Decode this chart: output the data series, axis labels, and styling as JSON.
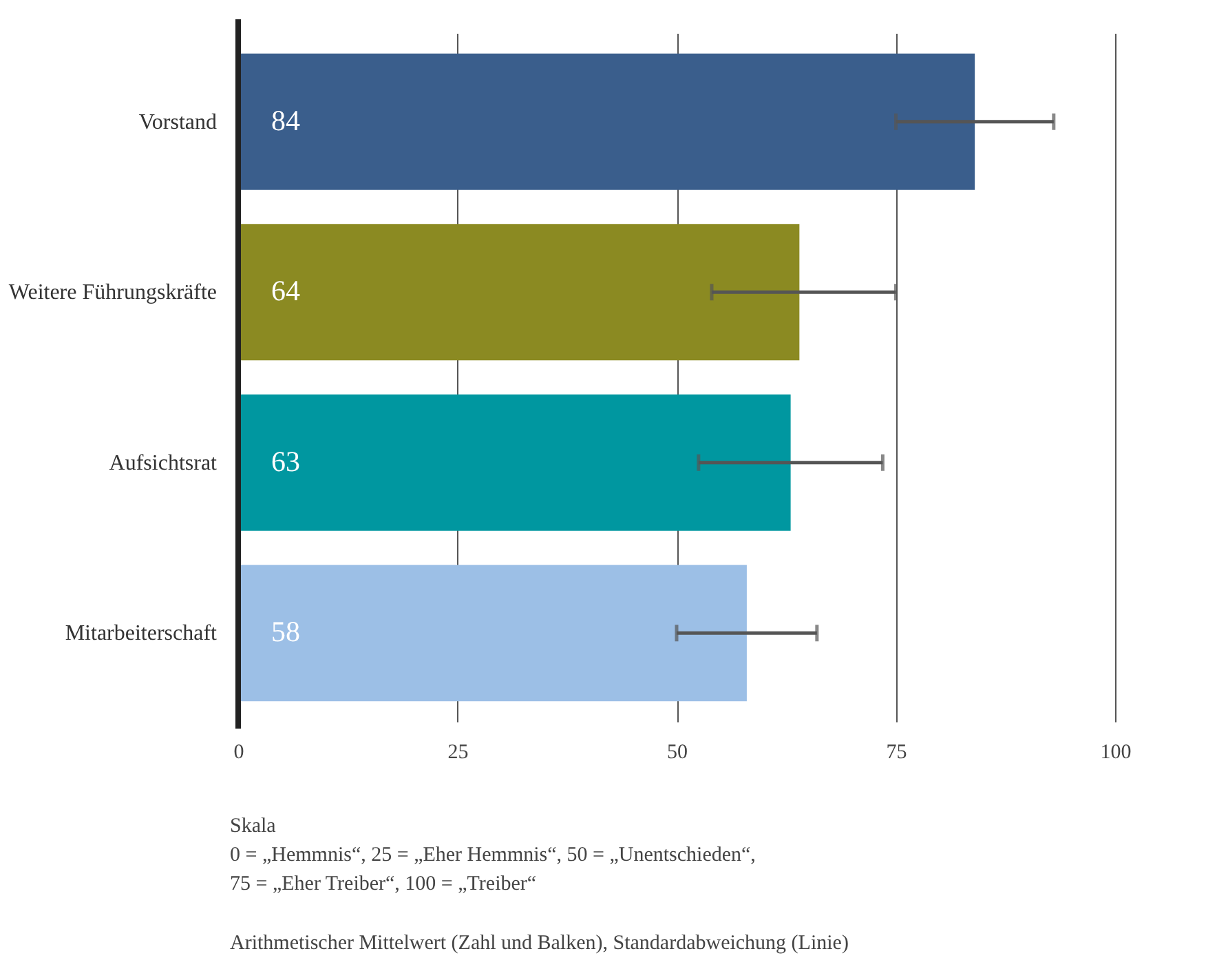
{
  "chart_data": {
    "type": "bar",
    "orientation": "horizontal",
    "categories": [
      "Vorstand",
      "Weitere Führungskräfte",
      "Aufsichtsrat",
      "Mitarbeiterschaft"
    ],
    "values": [
      84,
      64,
      63,
      58
    ],
    "colors": [
      "#3a5e8c",
      "#8b8a22",
      "#0097a0",
      "#9cbfe6"
    ],
    "errors": [
      [
        75,
        93
      ],
      [
        54,
        75
      ],
      [
        52.5,
        73.5
      ],
      [
        50,
        66
      ]
    ],
    "data_labels": true,
    "xlim": [
      0,
      100
    ],
    "xticks": [
      0,
      25,
      50,
      75,
      100
    ],
    "grid": "x",
    "annotations": [
      "Skala",
      "0 = „Hemmnis“, 25 = „Eher Hemmnis“, 50 = „Unentschieden“,",
      "75 = „Eher Treiber“, 100 = „Treiber“",
      "Arithmetischer Mittelwert (Zahl und Balken), Standardabweichung (Linie)"
    ]
  }
}
